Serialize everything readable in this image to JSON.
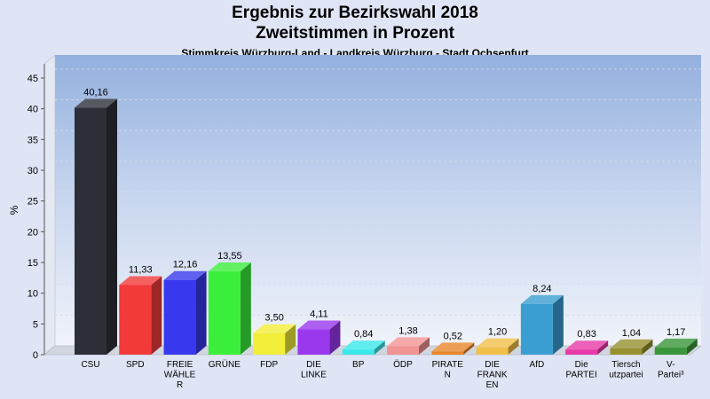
{
  "chart_data": {
    "type": "bar",
    "title": "Ergebnis zur Bezirkswahl 2018",
    "subtitle": "Zweitstimmen in Prozent",
    "subtitle2": "Stimmkreis Würzburg-Land - Landkreis Würzburg - Stadt Ochsenfurt",
    "ylabel": "%",
    "ylim": [
      0,
      45
    ],
    "yticks": [
      "0",
      "5",
      "10",
      "15",
      "20",
      "25",
      "30",
      "35",
      "40",
      "45"
    ],
    "grid": true,
    "categories": [
      [
        "CSU"
      ],
      [
        "SPD"
      ],
      [
        "FREIE",
        "WÄHLE",
        "R"
      ],
      [
        "GRÜNE"
      ],
      [
        "FDP"
      ],
      [
        "DIE",
        "LINKE"
      ],
      [
        "BP"
      ],
      [
        "ÖDP"
      ],
      [
        "PIRATE",
        "N"
      ],
      [
        "DIE",
        "FRANK",
        "EN"
      ],
      [
        "AfD"
      ],
      [
        "Die",
        "PARTEI"
      ],
      [
        "Tiersch",
        "utzpartei"
      ],
      [
        "V-",
        "Partei³"
      ]
    ],
    "values": [
      40.16,
      11.33,
      12.16,
      13.55,
      3.5,
      4.11,
      0.84,
      1.38,
      0.52,
      1.2,
      8.24,
      0.83,
      1.04,
      1.17
    ],
    "value_labels": [
      "40,16",
      "11,33",
      "12,16",
      "13,55",
      "3,50",
      "4,11",
      "0,84",
      "1,38",
      "0,52",
      "1,20",
      "8,24",
      "0,83",
      "1,04",
      "1,17"
    ],
    "colors": [
      "#2c2f38",
      "#f23a3a",
      "#3838ee",
      "#3cee3c",
      "#f2ee3a",
      "#9a38ee",
      "#3ae8ea",
      "#f29494",
      "#e8862a",
      "#f2c04a",
      "#3a9ed2",
      "#e83aa8",
      "#969030",
      "#3a963a"
    ]
  }
}
